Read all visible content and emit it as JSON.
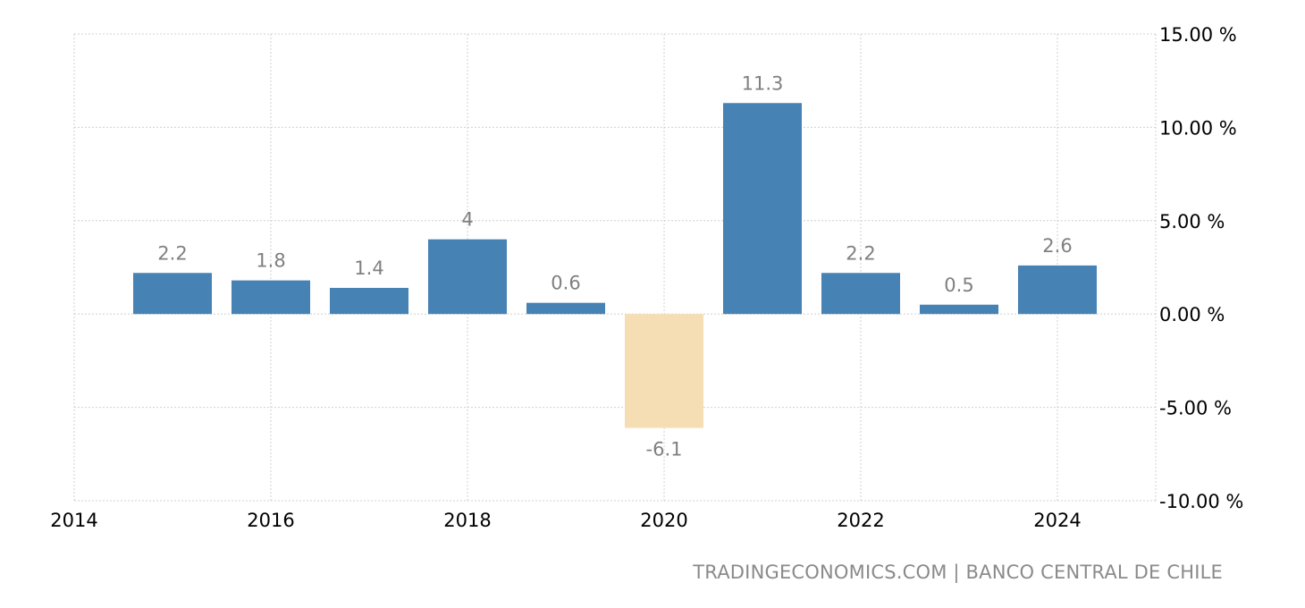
{
  "chart_data": {
    "type": "bar",
    "categories": [
      "2015",
      "2016",
      "2017",
      "2018",
      "2019",
      "2020",
      "2021",
      "2022",
      "2023",
      "2024"
    ],
    "values": [
      2.2,
      1.8,
      1.4,
      4,
      0.6,
      -6.1,
      11.3,
      2.2,
      0.5,
      2.6
    ],
    "data_labels": [
      "2.2",
      "1.8",
      "1.4",
      "4",
      "0.6",
      "-6.1",
      "11.3",
      "2.2",
      "0.5",
      "2.6"
    ],
    "ylim": [
      -10,
      15
    ],
    "yticks": [
      15,
      10,
      5,
      0,
      -5,
      -10
    ],
    "ytick_labels": [
      "15.00 %",
      "10.00 %",
      "5.00 %",
      "0.00 %",
      "-5.00 %",
      "-10.00 %"
    ],
    "xlim": [
      2014,
      2025
    ],
    "xticks": [
      2014,
      2016,
      2018,
      2020,
      2022,
      2024
    ],
    "xtick_labels": [
      "2014",
      "2016",
      "2018",
      "2020",
      "2022",
      "2024"
    ],
    "grid": true,
    "colors": {
      "positive": "#4682b4",
      "negative": "#f5deb3",
      "label": "#808080",
      "grid": "#d0d0d0"
    }
  },
  "source": "TRADINGECONOMICS.COM | BANCO CENTRAL DE CHILE"
}
